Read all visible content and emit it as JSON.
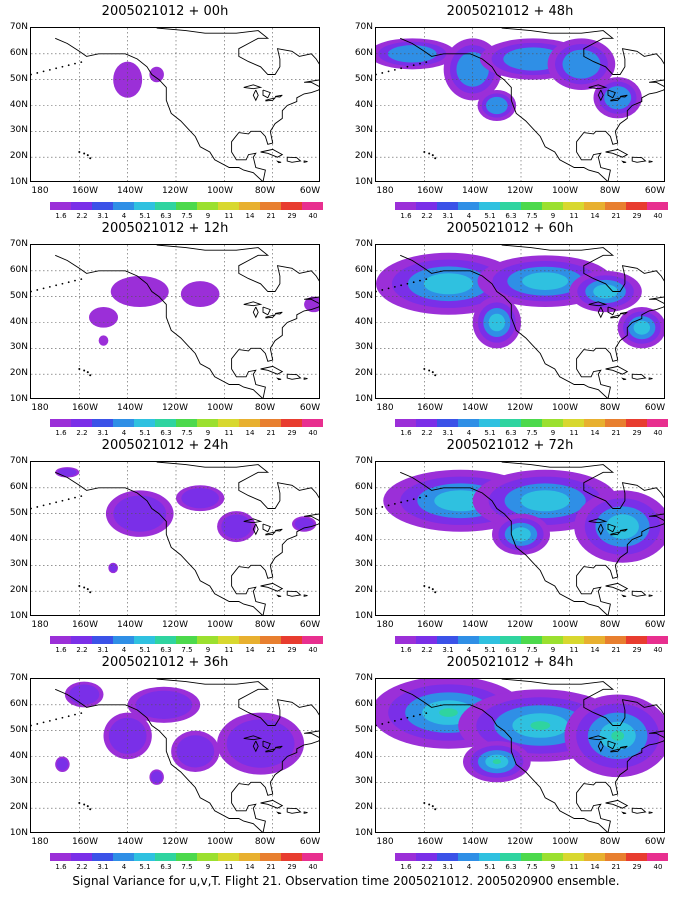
{
  "panels": [
    {
      "title": "2005021012 + 00h",
      "level": 0
    },
    {
      "title": "2005021012 + 48h",
      "level": 4
    },
    {
      "title": "2005021012 + 12h",
      "level": 1
    },
    {
      "title": "2005021012 + 60h",
      "level": 5
    },
    {
      "title": "2005021012 + 24h",
      "level": 2
    },
    {
      "title": "2005021012 + 72h",
      "level": 6
    },
    {
      "title": "2005021012 + 36h",
      "level": 3
    },
    {
      "title": "2005021012 + 84h",
      "level": 7
    }
  ],
  "lat_labels": [
    "70N",
    "60N",
    "50N",
    "40N",
    "30N",
    "20N",
    "10N"
  ],
  "lon_labels": [
    "180",
    "160W",
    "140W",
    "120W",
    "100W",
    "80W",
    "60W"
  ],
  "colorbar": {
    "colors": [
      "#9b2fd8",
      "#7a2fe8",
      "#3b52e8",
      "#2f8fe6",
      "#2fc1e0",
      "#2fd4a0",
      "#4cd94c",
      "#9be02f",
      "#d8d82f",
      "#e8b02f",
      "#e87f2f",
      "#e83c2f",
      "#e82f8f"
    ],
    "ticks": [
      "1.6",
      "2.2",
      "3.1",
      "4",
      "5.1",
      "6.3",
      "7.5",
      "9",
      "11",
      "14",
      "21",
      "29",
      "40"
    ]
  },
  "caption": "Signal Variance for u,v,T. Flight 21. Observation time 2005021012. 2005020900 ensemble."
}
